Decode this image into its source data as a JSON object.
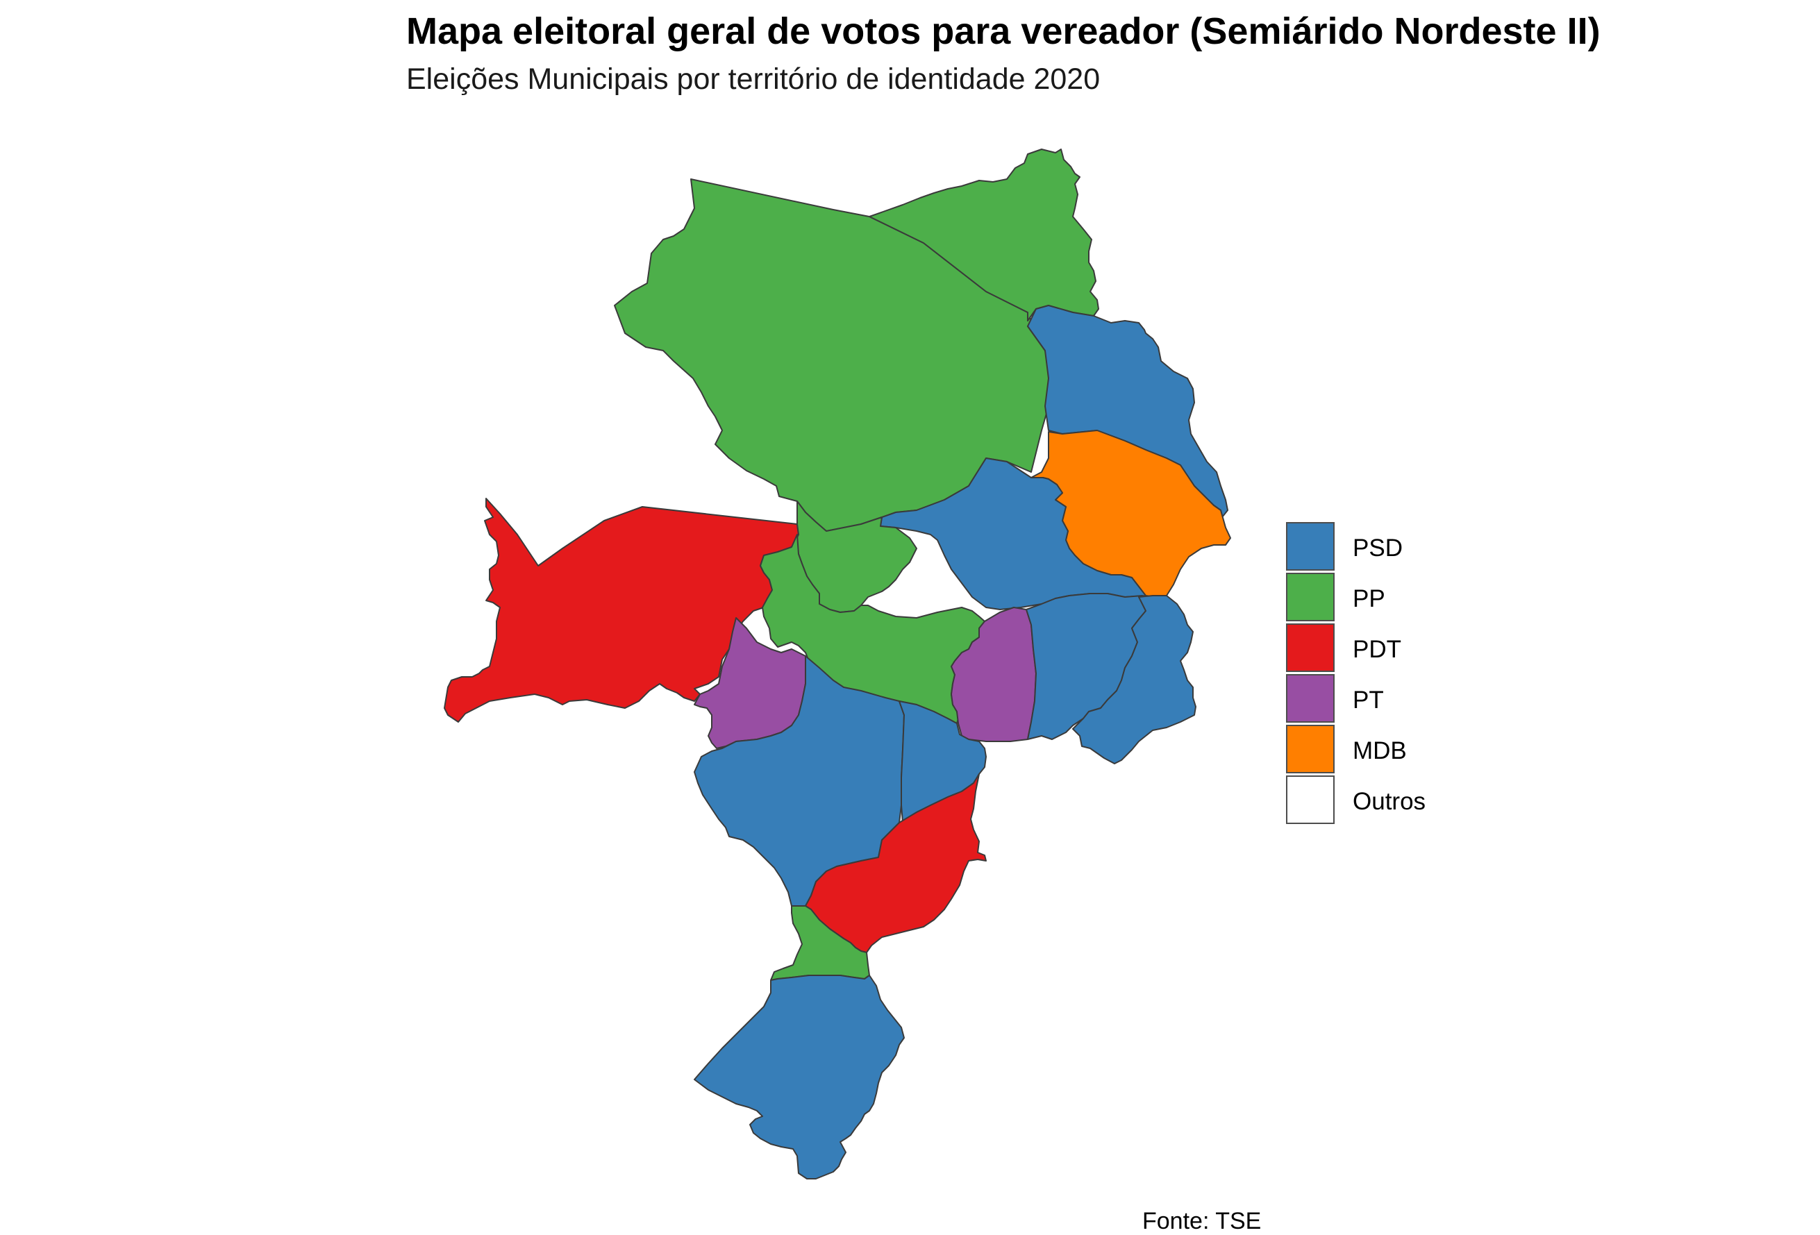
{
  "title": "Mapa eleitoral geral de votos para vereador (Semiárido Nordeste II)",
  "subtitle": "Eleições Municipais por território de identidade 2020",
  "caption": "Fonte: TSE",
  "legend": {
    "items": [
      {
        "label": "PSD",
        "color": "#377EB8"
      },
      {
        "label": "PP",
        "color": "#4DAF4A"
      },
      {
        "label": "PDT",
        "color": "#E41A1C"
      },
      {
        "label": "PT",
        "color": "#984EA3"
      },
      {
        "label": "MDB",
        "color": "#FF7F00"
      },
      {
        "label": "Outros",
        "color": "#FFFFFF"
      }
    ]
  },
  "map": {
    "fill_variable": "winning party",
    "municipalities": [
      {
        "party": "PP"
      },
      {
        "party": "PP"
      },
      {
        "party": "PSD"
      },
      {
        "party": "MDB"
      },
      {
        "party": "PSD"
      },
      {
        "party": "PDT"
      },
      {
        "party": "PP"
      },
      {
        "party": "PP"
      },
      {
        "party": "PT"
      },
      {
        "party": "PT"
      },
      {
        "party": "PSD"
      },
      {
        "party": "PSD"
      },
      {
        "party": "PSD"
      },
      {
        "party": "PSD"
      },
      {
        "party": "PDT"
      },
      {
        "party": "PP"
      },
      {
        "party": "PSD"
      }
    ]
  }
}
